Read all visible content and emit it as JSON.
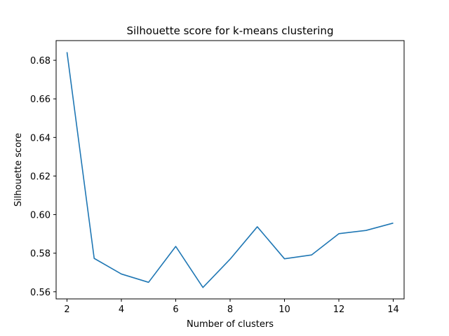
{
  "chart_data": {
    "type": "line",
    "title": "Silhouette score for k-means clustering",
    "xlabel": "Number of clusters",
    "ylabel": "Silhouette score",
    "xlim": [
      1.6,
      14.4
    ],
    "ylim": [
      0.5563,
      0.6902
    ],
    "xticks": [
      2,
      4,
      6,
      8,
      10,
      12,
      14
    ],
    "xtick_labels": [
      "2",
      "4",
      "6",
      "8",
      "10",
      "12",
      "14"
    ],
    "yticks": [
      0.56,
      0.58,
      0.6,
      0.62,
      0.64,
      0.66,
      0.68
    ],
    "ytick_labels": [
      "0.56",
      "0.58",
      "0.60",
      "0.62",
      "0.64",
      "0.66",
      "0.68"
    ],
    "grid": false,
    "series": [
      {
        "name": "silhouette",
        "color": "#1f77b4",
        "x": [
          2,
          3,
          4,
          5,
          6,
          7,
          8,
          9,
          10,
          11,
          12,
          13,
          14
        ],
        "y": [
          0.6842,
          0.5773,
          0.5692,
          0.5649,
          0.5835,
          0.5622,
          0.5769,
          0.5937,
          0.5771,
          0.5791,
          0.5901,
          0.5918,
          0.5956
        ]
      }
    ]
  }
}
